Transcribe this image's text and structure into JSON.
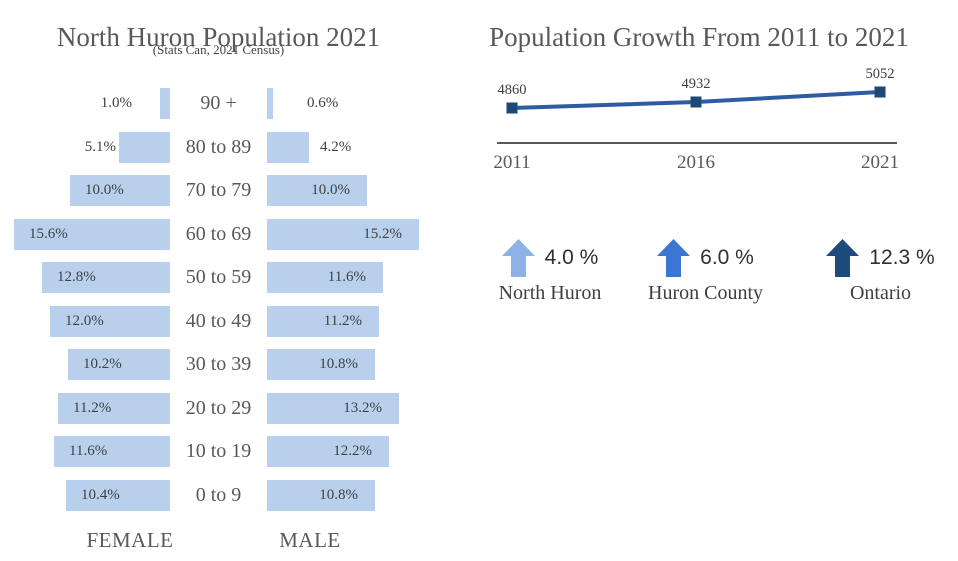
{
  "colors": {
    "bar_blue": "#B9D0ED",
    "line_blue": "#2E5CA3",
    "marker_navy": "#1F4777",
    "arrow_light": "#8DB3E6",
    "arrow_mid": "#3C76D2",
    "arrow_dark": "#1F4A7C",
    "axis_gray": "#595959",
    "text_gray": "#595959",
    "text_dark": "#3F3F3F"
  },
  "left_chart": {
    "title": "North Huron Population 2021",
    "subtitle": "(Stats Can, 2021 Census)",
    "female_label": "FEMALE",
    "male_label": "MALE",
    "rows": [
      {
        "age": "90 +",
        "female_label": "1.0%",
        "male_label": "0.6%",
        "female_pct": 1.0,
        "male_pct": 0.6
      },
      {
        "age": "80 to 89",
        "female_label": "5.1%",
        "male_label": "4.2%",
        "female_pct": 5.1,
        "male_pct": 4.2
      },
      {
        "age": "70 to 79",
        "female_label": "10.0%",
        "male_label": "10.0%",
        "female_pct": 10.0,
        "male_pct": 10.0
      },
      {
        "age": "60 to 69",
        "female_label": "15.6%",
        "male_label": "15.2%",
        "female_pct": 15.6,
        "male_pct": 15.2
      },
      {
        "age": "50 to 59",
        "female_label": "12.8%",
        "male_label": "11.6%",
        "female_pct": 12.8,
        "male_pct": 11.6
      },
      {
        "age": "40 to 49",
        "female_label": "12.0%",
        "male_label": "11.2%",
        "female_pct": 12.0,
        "male_pct": 11.2
      },
      {
        "age": "30 to 39",
        "female_label": "10.2%",
        "male_label": "10.8%",
        "female_pct": 10.2,
        "male_pct": 10.8
      },
      {
        "age": "20 to 29",
        "female_label": "11.2%",
        "male_label": "13.2%",
        "female_pct": 11.2,
        "male_pct": 13.2
      },
      {
        "age": "10 to 19",
        "female_label": "11.6%",
        "male_label": "12.2%",
        "female_pct": 11.6,
        "male_pct": 12.2
      },
      {
        "age": "0 to 9",
        "female_label": "10.4%",
        "male_label": "10.8%",
        "female_pct": 10.4,
        "male_pct": 10.8
      }
    ]
  },
  "right_chart": {
    "title": "Population Growth From 2011 to 2021",
    "points": [
      {
        "year": "2011",
        "value": 4860
      },
      {
        "year": "2016",
        "value": 4932
      },
      {
        "year": "2021",
        "value": 5052
      }
    ],
    "stats": [
      {
        "percent": "4.0 %",
        "name": "North Huron",
        "arrow_color": "#8DB3E6"
      },
      {
        "percent": "6.0 %",
        "name": "Huron County",
        "arrow_color": "#3C76D2"
      },
      {
        "percent": "12.3 %",
        "name": "Ontario",
        "arrow_color": "#1F4A7C"
      }
    ]
  },
  "chart_data": [
    {
      "type": "bar",
      "subtype": "population-pyramid",
      "title": "North Huron Population 2021",
      "subtitle": "(Stats Can, 2021 Census)",
      "categories": [
        "90 +",
        "80 to 89",
        "70 to 79",
        "60 to 69",
        "50 to 59",
        "40 to 49",
        "30 to 39",
        "20 to 29",
        "10 to 19",
        "0 to 9"
      ],
      "series": [
        {
          "name": "FEMALE",
          "unit": "%",
          "values": [
            1.0,
            5.1,
            10.0,
            15.6,
            12.8,
            12.0,
            10.2,
            11.2,
            11.6,
            10.4
          ]
        },
        {
          "name": "MALE",
          "unit": "%",
          "values": [
            0.6,
            4.2,
            10.0,
            15.2,
            11.6,
            11.2,
            10.8,
            13.2,
            12.2,
            10.8
          ]
        }
      ],
      "xlim": [
        0,
        16
      ],
      "grid": false,
      "bar_color": "#B9D0ED"
    },
    {
      "type": "line",
      "title": "Population Growth From 2011 to 2021",
      "x": [
        2011,
        2016,
        2021
      ],
      "values": [
        4860,
        4932,
        5052
      ],
      "data_labels": [
        "4860",
        "4932",
        "5052"
      ],
      "marker": "square",
      "line_color": "#2E5CA3",
      "grid": false,
      "annotations": [
        {
          "label": "North Huron",
          "value": "4.0 %",
          "direction": "up"
        },
        {
          "label": "Huron County",
          "value": "6.0 %",
          "direction": "up"
        },
        {
          "label": "Ontario",
          "value": "12.3 %",
          "direction": "up"
        }
      ]
    }
  ]
}
